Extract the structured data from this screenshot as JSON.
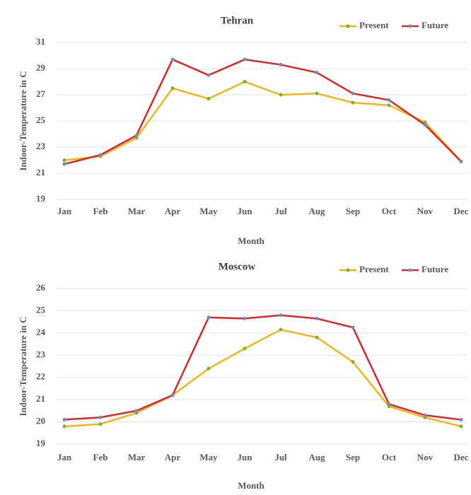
{
  "chart_data": [
    {
      "type": "line",
      "title": "Tehran",
      "x_label": "Month",
      "y_label": "Indoor-Temperature in C",
      "categories": [
        "Jan",
        "Feb",
        "Mar",
        "Apr",
        "May",
        "Jun",
        "Jul",
        "Aug",
        "Sep",
        "Oct",
        "Nov",
        "Dec"
      ],
      "series": [
        {
          "name": "Present",
          "color": "#f2b61c",
          "marker_color": "#7ab51d",
          "values": [
            22.0,
            22.3,
            23.7,
            27.5,
            26.7,
            28.0,
            27.0,
            27.1,
            26.4,
            26.2,
            24.9,
            21.9
          ]
        },
        {
          "name": "Future",
          "color": "#d9262b",
          "marker_color": "#6f8fbf",
          "values": [
            21.7,
            22.4,
            23.9,
            29.7,
            28.5,
            29.7,
            29.3,
            28.7,
            27.1,
            26.6,
            24.7,
            21.9
          ]
        }
      ],
      "ylim": [
        19,
        31
      ],
      "yticks": [
        19,
        21,
        23,
        25,
        27,
        29,
        31
      ],
      "grid": true,
      "legend": "top-right"
    },
    {
      "type": "line",
      "title": "Moscow",
      "x_label": "Month",
      "y_label": "Indoor-Temperature in C",
      "categories": [
        "Jan",
        "Feb",
        "Mar",
        "Apr",
        "May",
        "Jun",
        "Jul",
        "Aug",
        "Sep",
        "Oct",
        "Nov",
        "Dec"
      ],
      "series": [
        {
          "name": "Present",
          "color": "#f2b61c",
          "marker_color": "#7ab51d",
          "values": [
            19.8,
            19.9,
            20.4,
            21.2,
            22.4,
            23.3,
            24.15,
            23.8,
            22.7,
            20.7,
            20.2,
            19.8
          ]
        },
        {
          "name": "Future",
          "color": "#d9262b",
          "marker_color": "#6f8fbf",
          "values": [
            20.1,
            20.2,
            20.5,
            21.2,
            24.7,
            24.65,
            24.8,
            24.65,
            24.25,
            20.8,
            20.3,
            20.1
          ]
        }
      ],
      "ylim": [
        19,
        26
      ],
      "yticks": [
        19,
        20,
        21,
        22,
        23,
        24,
        25,
        26
      ],
      "grid": true,
      "legend": "top-right"
    }
  ]
}
